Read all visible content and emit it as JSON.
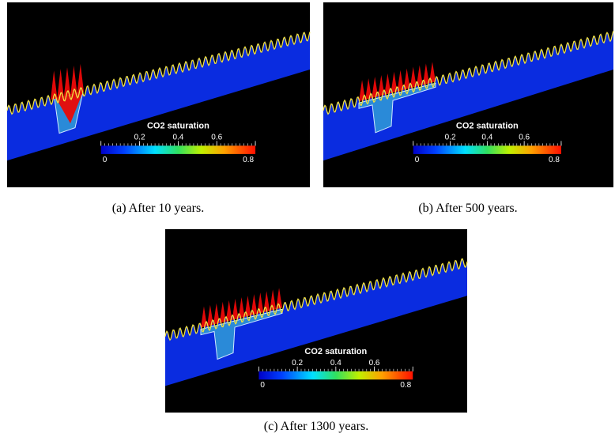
{
  "figures": [
    {
      "caption": "(a)  After 10 years.",
      "colorbar": {
        "title": "CO2 saturation",
        "range": [
          0,
          0.8
        ],
        "ticks": [
          0,
          0.2,
          0.4,
          0.6,
          0.8
        ]
      }
    },
    {
      "caption": "(b)  After 500 years.",
      "colorbar": {
        "title": "CO2 saturation",
        "range": [
          0,
          0.8
        ],
        "ticks": [
          0,
          0.2,
          0.4,
          0.6,
          0.8
        ]
      }
    },
    {
      "caption": "(c)  After 1300 years.",
      "colorbar": {
        "title": "CO2 saturation",
        "range": [
          0,
          0.8
        ],
        "ticks": [
          0,
          0.2,
          0.4,
          0.6,
          0.8
        ]
      }
    }
  ]
}
